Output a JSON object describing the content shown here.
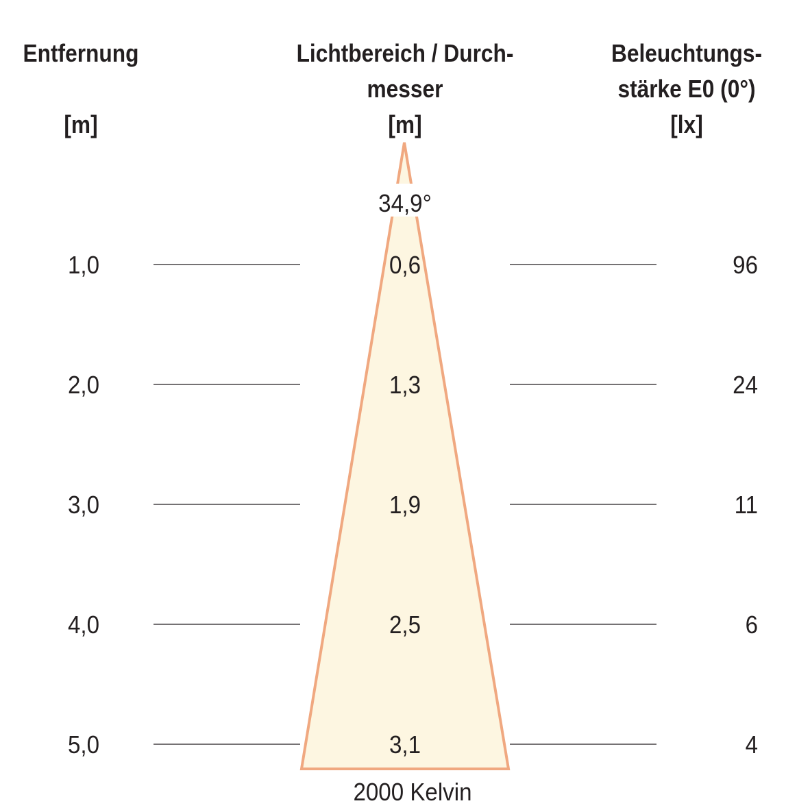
{
  "headers": {
    "distance": {
      "line1": "Entfernung",
      "line2": "",
      "unit": "[m]"
    },
    "diameter": {
      "line1": "Lichtbereich / Durch-",
      "line2": "messer",
      "unit": "[m]"
    },
    "illuminance": {
      "line1": "Beleuchtungs-",
      "line2": "stärke E0 (0°)",
      "unit": "[lx]"
    }
  },
  "beam_angle": "34,9°",
  "color_temperature": "2000 Kelvin",
  "rows": [
    {
      "distance": "1,0",
      "diameter": "0,6",
      "lux": "96"
    },
    {
      "distance": "2,0",
      "diameter": "1,3",
      "lux": "24"
    },
    {
      "distance": "3,0",
      "diameter": "1,9",
      "lux": "11"
    },
    {
      "distance": "4,0",
      "diameter": "2,5",
      "lux": "6"
    },
    {
      "distance": "5,0",
      "diameter": "3,1",
      "lux": "4"
    }
  ],
  "colors": {
    "cone_fill": "#fdf6e1",
    "cone_stroke": "#f0a880",
    "text": "#231f20",
    "rule": "#231f20"
  }
}
